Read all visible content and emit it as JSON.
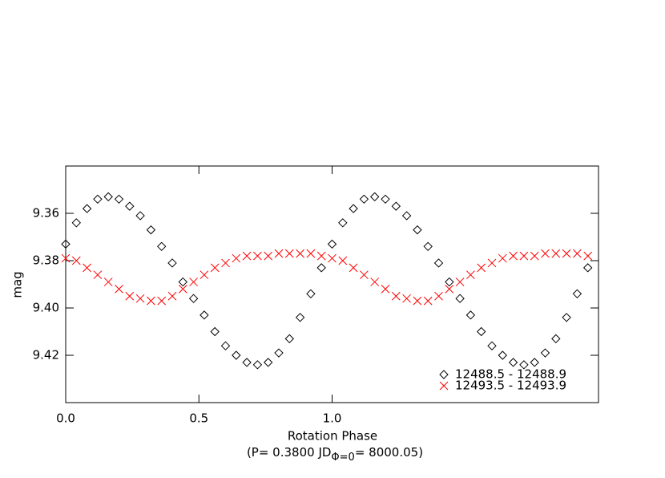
{
  "chart_data": {
    "type": "scatter",
    "xlabel": "Rotation Phase",
    "xlabel_note": {
      "prefix": "(P= 0.3800 JD",
      "subscript": "Φ=0",
      "suffix": "= 8000.05)"
    },
    "ylabel": "mag",
    "xlim": [
      0,
      2
    ],
    "xticks": [
      {
        "value": 0,
        "label": "0.0"
      },
      0.5,
      {
        "value": 1,
        "label": "1.0"
      }
    ],
    "ylim": [
      9.44,
      9.34
    ],
    "yticks": [
      9.36,
      9.38,
      {
        "value": 9.4,
        "label": "9.40"
      },
      9.42
    ],
    "legend": "lower right",
    "x": [
      0,
      0.04,
      0.08,
      0.12,
      0.16,
      0.2,
      0.24,
      0.28,
      0.32,
      0.36,
      0.4,
      0.44,
      0.48,
      0.52,
      0.56,
      0.6,
      0.64,
      0.68,
      0.72,
      0.76,
      0.8,
      0.84,
      0.88,
      0.92,
      0.96,
      1,
      1.04,
      1.08,
      1.12,
      1.16,
      1.2,
      1.24,
      1.28,
      1.32,
      1.36,
      1.4,
      1.44,
      1.48,
      1.52,
      1.56,
      1.6,
      1.64,
      1.68,
      1.72,
      1.76,
      1.8,
      1.84,
      1.88,
      1.92,
      1.96
    ],
    "series": [
      {
        "name": "12488.5 - 12488.9",
        "color": "#000000",
        "marker": "diamond",
        "values": [
          9.373,
          9.364,
          9.358,
          9.354,
          9.353,
          9.354,
          9.357,
          9.361,
          9.367,
          9.374,
          9.381,
          9.389,
          9.396,
          9.403,
          9.41,
          9.416,
          9.42,
          9.423,
          9.424,
          9.423,
          9.419,
          9.413,
          9.404,
          9.394,
          9.383,
          9.373,
          9.364,
          9.358,
          9.354,
          9.353,
          9.354,
          9.357,
          9.361,
          9.367,
          9.374,
          9.381,
          9.389,
          9.396,
          9.403,
          9.41,
          9.416,
          9.42,
          9.423,
          9.424,
          9.423,
          9.419,
          9.413,
          9.404,
          9.394,
          9.383
        ]
      },
      {
        "name": "12493.5 - 12493.9",
        "color": "#ff0000",
        "marker": "x",
        "values": [
          9.379,
          9.38,
          9.383,
          9.386,
          9.389,
          9.392,
          9.395,
          9.396,
          9.397,
          9.397,
          9.395,
          9.392,
          9.389,
          9.386,
          9.383,
          9.381,
          9.379,
          9.378,
          9.378,
          9.378,
          9.377,
          9.377,
          9.377,
          9.377,
          9.378,
          9.379,
          9.38,
          9.383,
          9.386,
          9.389,
          9.392,
          9.395,
          9.396,
          9.397,
          9.397,
          9.395,
          9.392,
          9.389,
          9.386,
          9.383,
          9.381,
          9.379,
          9.378,
          9.378,
          9.378,
          9.377,
          9.377,
          9.377,
          9.377,
          9.378
        ]
      }
    ]
  }
}
